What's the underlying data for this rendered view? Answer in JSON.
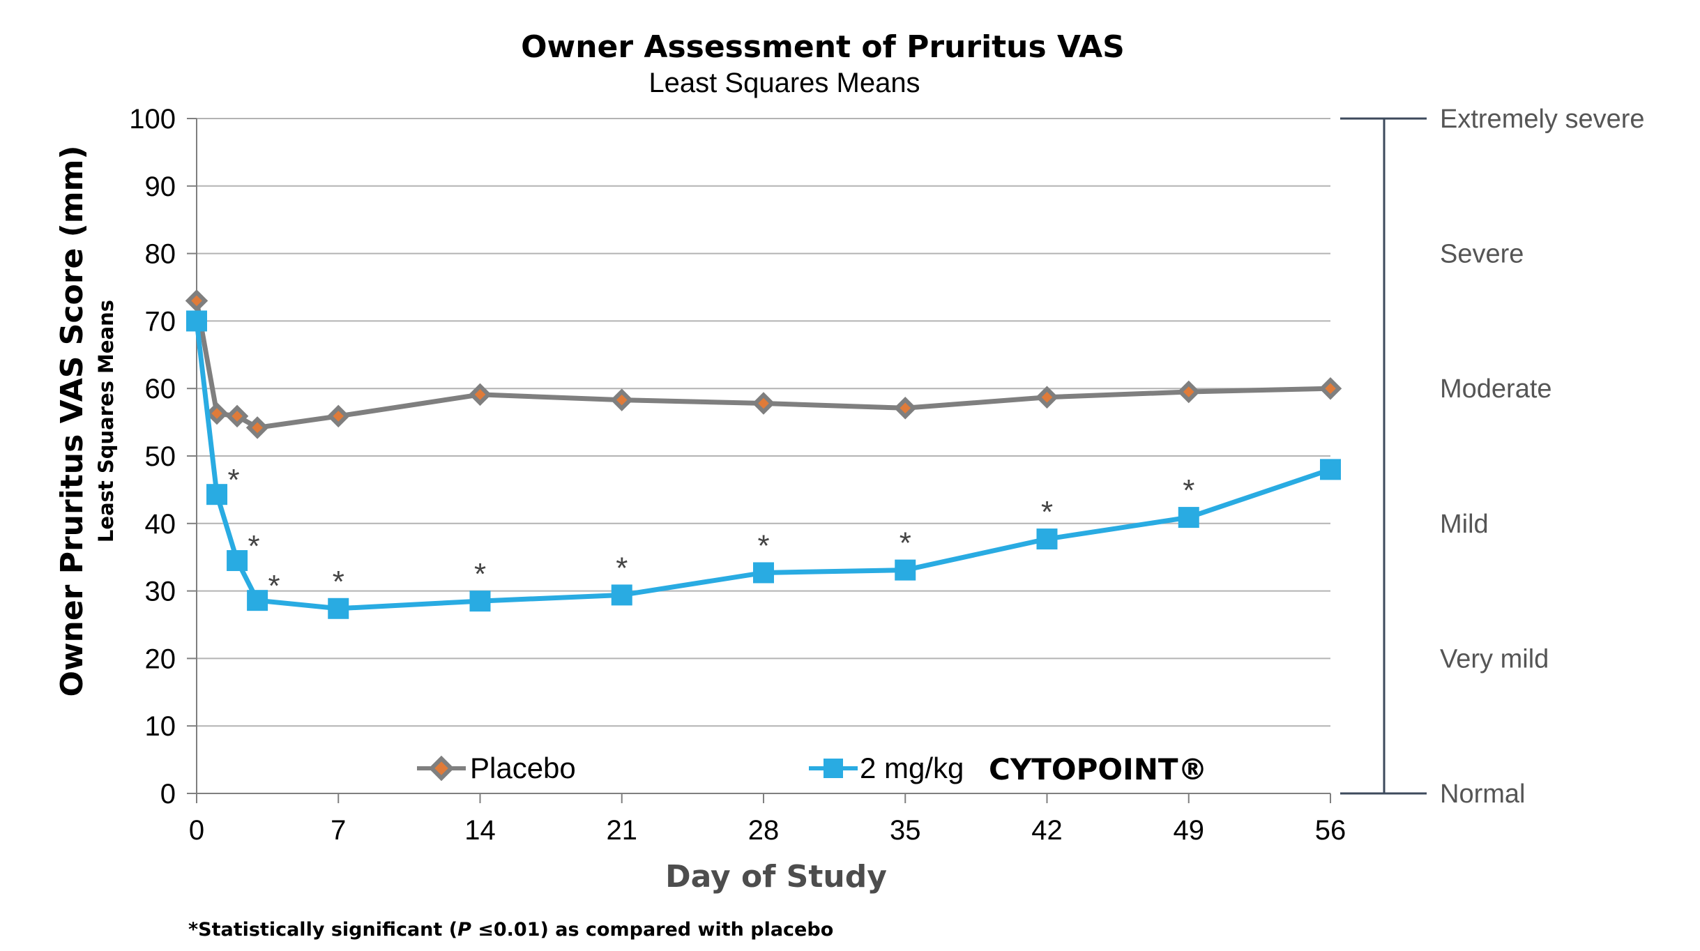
{
  "chart_data": {
    "type": "line",
    "title": "Owner Assessment of Pruritus VAS",
    "subtitle": "Least Squares Means",
    "ylabel": "Owner Pruritus VAS Score (mm)",
    "ylabel_sub": "Least Squares Means",
    "xlabel": "Day of Study",
    "ylim": [
      0,
      100
    ],
    "xlim": [
      0,
      56
    ],
    "yticks": [
      "0",
      "10",
      "20",
      "30",
      "40",
      "50",
      "60",
      "70",
      "80",
      "90",
      "100"
    ],
    "xticks": [
      "0",
      "7",
      "14",
      "21",
      "28",
      "35",
      "42",
      "49",
      "56"
    ],
    "ytick_values": [
      0,
      10,
      20,
      30,
      40,
      50,
      60,
      70,
      80,
      90,
      100
    ],
    "xtick_values": [
      0,
      7,
      14,
      21,
      28,
      35,
      42,
      49,
      56
    ],
    "grid": true,
    "series": [
      {
        "name": "Placebo",
        "color": "#7f7f7f",
        "marker_color": "#e07b39",
        "marker": "diamond",
        "x": [
          0,
          1,
          2,
          3,
          7,
          14,
          21,
          28,
          35,
          42,
          49,
          56
        ],
        "values": [
          73,
          56.3,
          55.9,
          54.2,
          55.9,
          59.1,
          58.3,
          57.8,
          57.1,
          58.7,
          59.5,
          60
        ]
      },
      {
        "name": "2 mg/kg",
        "brand": "CYTOPOINT®",
        "color": "#29abe2",
        "marker": "square",
        "x": [
          0,
          1,
          2,
          3,
          7,
          14,
          21,
          28,
          35,
          42,
          49,
          56
        ],
        "values": [
          70,
          44.3,
          34.5,
          28.6,
          27.4,
          28.5,
          29.4,
          32.7,
          33.1,
          37.7,
          40.9,
          48
        ]
      }
    ],
    "significance": {
      "symbol": "*",
      "x": [
        1,
        2,
        3,
        7,
        14,
        21,
        28,
        35,
        42,
        49
      ]
    },
    "severity_scale": [
      {
        "label": "Extremely severe",
        "value": 100
      },
      {
        "label": "Severe",
        "value": 80
      },
      {
        "label": "Moderate",
        "value": 60
      },
      {
        "label": "Mild",
        "value": 40
      },
      {
        "label": "Very mild",
        "value": 20
      },
      {
        "label": "Normal",
        "value": 0
      }
    ],
    "footnote": {
      "pre": "*Statistically significant (",
      "p": "P",
      "post": " ≤0.01) as compared with placebo"
    }
  }
}
